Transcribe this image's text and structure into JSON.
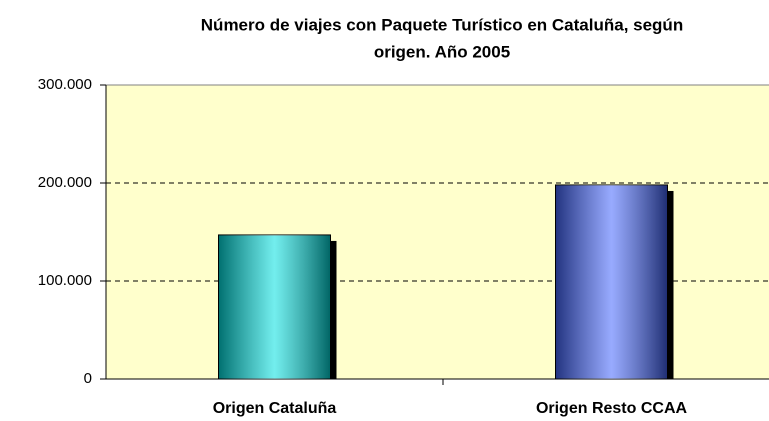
{
  "chart_data": {
    "type": "bar",
    "title": [
      "Número de viajes con Paquete Turístico en Cataluña, según",
      "origen. Año 2005"
    ],
    "categories": [
      "Origen Cataluña",
      "Origen Resto CCAA"
    ],
    "values": [
      147000,
      198000
    ],
    "colors": [
      "#00e0e0",
      "#4466ff"
    ],
    "ylim": [
      0,
      300000
    ],
    "yticks": [
      0,
      {
        "value": 100000,
        "label": "100.000"
      },
      {
        "value": 200000,
        "label": "200.000"
      },
      {
        "value": 300000,
        "label": "300.000"
      }
    ],
    "grid": true
  }
}
